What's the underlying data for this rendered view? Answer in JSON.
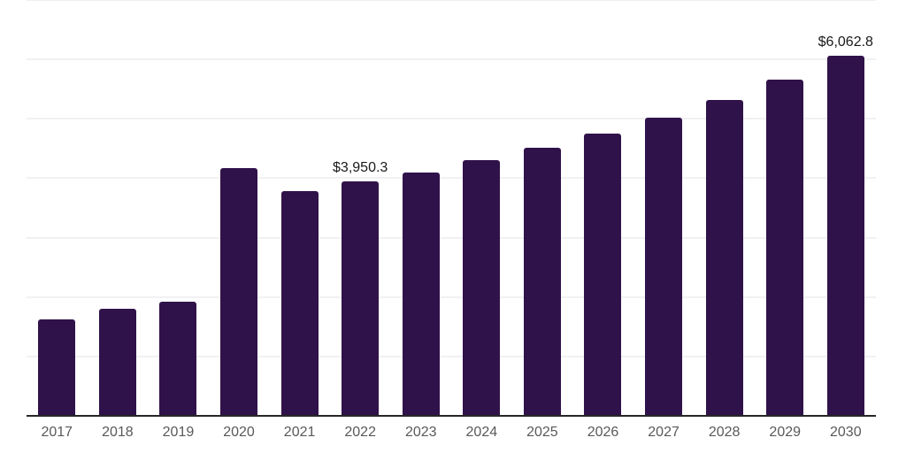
{
  "chart_data": {
    "type": "bar",
    "title": "",
    "categories": [
      "2017",
      "2018",
      "2019",
      "2020",
      "2021",
      "2022",
      "2023",
      "2024",
      "2025",
      "2026",
      "2027",
      "2028",
      "2029",
      "2030"
    ],
    "values": [
      1630,
      1800,
      1915,
      4170,
      3790,
      3950.3,
      4095,
      4305,
      4515,
      4750,
      5025,
      5320,
      5660,
      6062.8
    ],
    "xlabel": "",
    "ylabel": "",
    "ylim": [
      0,
      7000
    ],
    "gridline_interval": 1000,
    "grid": true,
    "legend_position": "none",
    "annotations": [
      {
        "category": "2022",
        "label": "$3,950.3"
      },
      {
        "category": "2030",
        "label": "$6,062.8"
      }
    ],
    "colors": {
      "bar": "#30124A",
      "axis_line": "#262626",
      "gridline": "#f1f1f4",
      "tick_label": "#595959",
      "annotation_text": "#1a1a1a"
    }
  }
}
